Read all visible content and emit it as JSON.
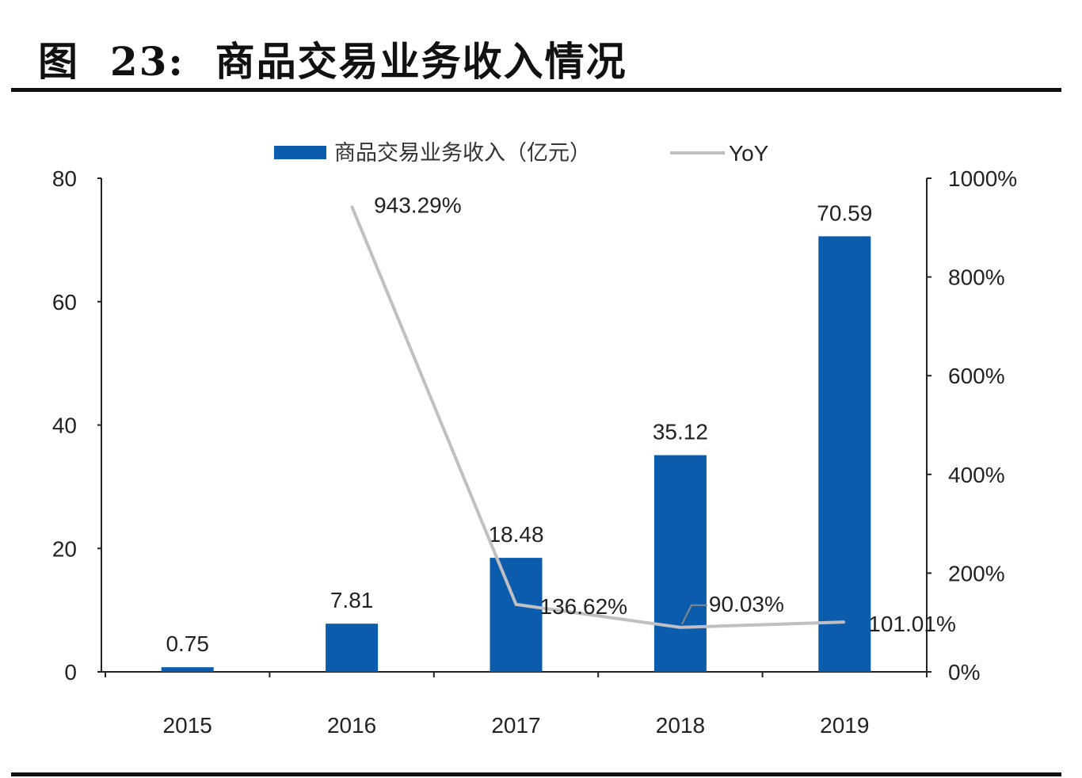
{
  "title": "图  23:  商品交易业务收入情况",
  "chart_data": {
    "type": "bar+line",
    "categories": [
      "2015",
      "2016",
      "2017",
      "2018",
      "2019"
    ],
    "series": [
      {
        "name": "商品交易业务收入（亿元）",
        "type": "bar",
        "axis": "left",
        "color": "#0b5cad",
        "values": [
          0.75,
          7.81,
          18.48,
          35.12,
          70.59
        ],
        "labels": [
          "0.75",
          "7.81",
          "18.48",
          "35.12",
          "70.59"
        ]
      },
      {
        "name": "YoY",
        "type": "line",
        "axis": "right",
        "color": "#bfbfc4",
        "values": [
          null,
          943.29,
          136.62,
          90.03,
          101.01
        ],
        "labels": [
          "",
          "943.29%",
          "136.62%",
          "90.03%",
          "101.01%"
        ]
      }
    ],
    "left_axis": {
      "ylim": [
        0,
        80
      ],
      "ticks": [
        "0",
        "20",
        "40",
        "60",
        "80"
      ]
    },
    "right_axis": {
      "ylim": [
        0,
        1000
      ],
      "ticks": [
        "0%",
        "200%",
        "400%",
        "600%",
        "800%",
        "1000%"
      ]
    },
    "legend_placement": "top",
    "grid": false
  }
}
